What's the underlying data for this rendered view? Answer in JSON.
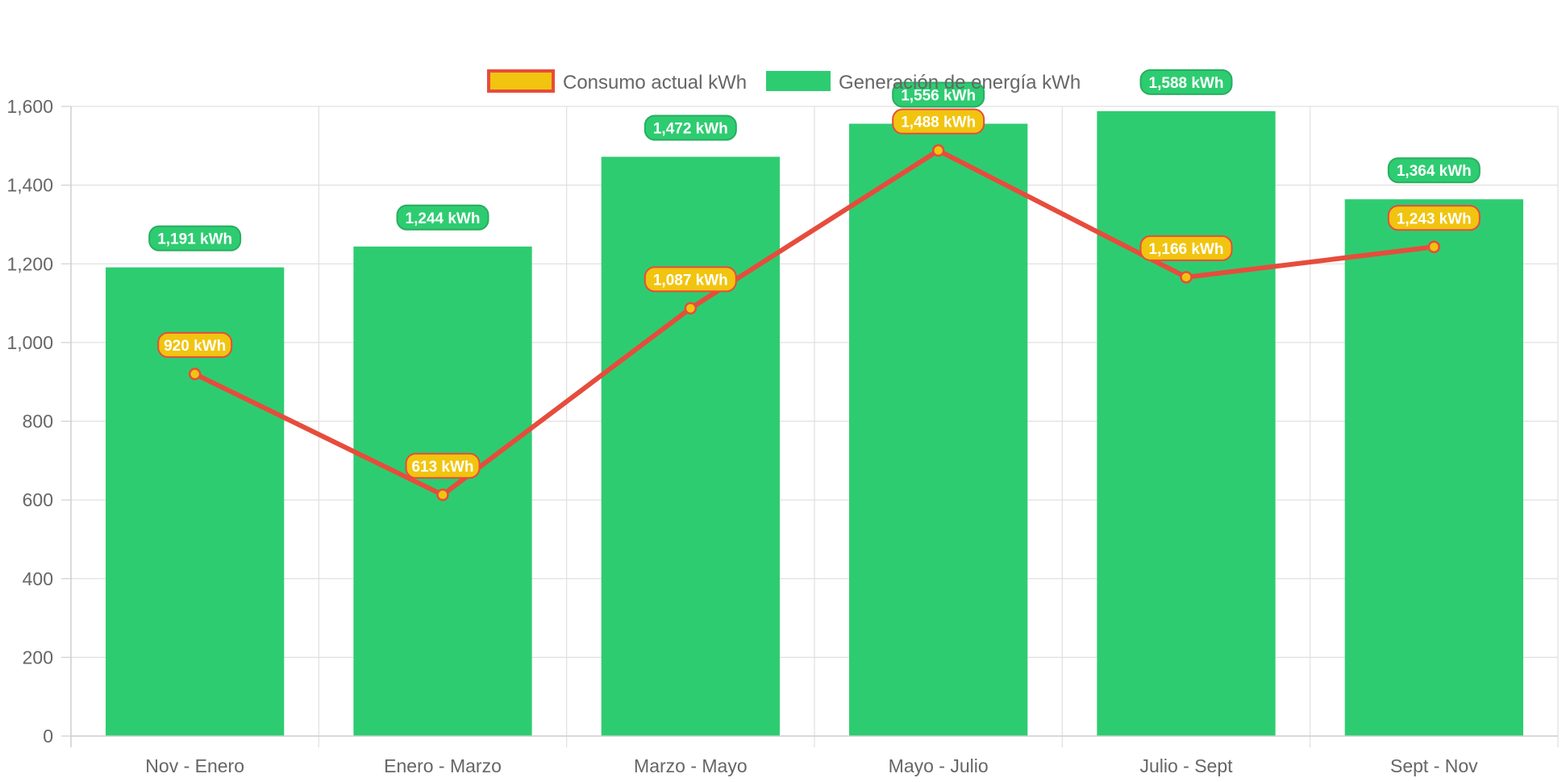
{
  "chart_data": {
    "type": "bar",
    "title": "",
    "xlabel": "",
    "ylabel": "",
    "categories": [
      "Nov - Enero",
      "Enero - Marzo",
      "Marzo - Mayo",
      "Mayo - Julio",
      "Julio - Sept",
      "Sept - Nov"
    ],
    "ylim": [
      0,
      1600
    ],
    "yticks": [
      0,
      200,
      400,
      600,
      800,
      1000,
      1200,
      1400,
      1600
    ],
    "ytick_labels": [
      "0",
      "200",
      "400",
      "600",
      "800",
      "1,000",
      "1,200",
      "1,400",
      "1,600"
    ],
    "grid": true,
    "legend_position": "top",
    "series": [
      {
        "name": "Consumo actual kWh",
        "type": "line",
        "values": [
          920,
          613,
          1087,
          1488,
          1166,
          1243
        ],
        "labels": [
          "920 kWh",
          "613 kWh",
          "1,087 kWh",
          "1,488 kWh",
          "1,166 kWh",
          "1,243 kWh"
        ],
        "color": "#e74c3c",
        "point_color": "#f1c40f"
      },
      {
        "name": "Generación de energía kWh",
        "type": "bar",
        "values": [
          1191,
          1244,
          1472,
          1556,
          1588,
          1364
        ],
        "labels": [
          "1,191 kWh",
          "1,244 kWh",
          "1,472 kWh",
          "1,556 kWh",
          "1,588 kWh",
          "1,364 kWh"
        ],
        "color": "#2ecc71",
        "badge_border": "#27ae60"
      }
    ]
  }
}
